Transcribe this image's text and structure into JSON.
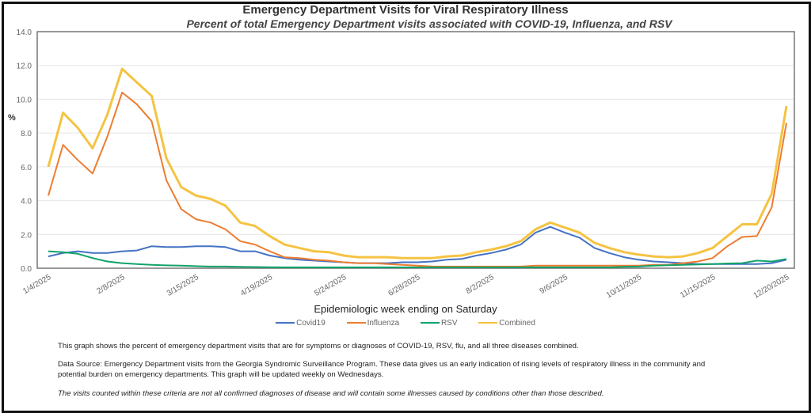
{
  "chart_data": {
    "type": "line",
    "title": "Emergency Department Visits for Viral Respiratory Illness",
    "subtitle": "Percent of total Emergency Department visits associated with COVID-19, Influenza, and RSV",
    "xlabel": "Epidemiologic week ending on Saturday",
    "ylabel": "%",
    "ylim": [
      0,
      14
    ],
    "yticks": [
      "0.0",
      "2.0",
      "4.0",
      "6.0",
      "8.0",
      "10.0",
      "12.0",
      "14.0"
    ],
    "grid": true,
    "legend": "bottom",
    "x": [
      "1/4/2025",
      "1/11/2025",
      "1/18/2025",
      "1/25/2025",
      "2/1/2025",
      "2/8/2025",
      "2/15/2025",
      "2/22/2025",
      "3/1/2025",
      "3/8/2025",
      "3/15/2025",
      "3/22/2025",
      "3/29/2025",
      "4/5/2025",
      "4/12/2025",
      "4/19/2025",
      "4/26/2025",
      "5/3/2025",
      "5/10/2025",
      "5/17/2025",
      "5/24/2025",
      "5/31/2025",
      "6/7/2025",
      "6/14/2025",
      "6/21/2025",
      "6/28/2025",
      "7/5/2025",
      "7/12/2025",
      "7/19/2025",
      "7/26/2025",
      "8/2/2025",
      "8/9/2025",
      "8/16/2025",
      "8/23/2025",
      "8/30/2025",
      "9/6/2025",
      "9/13/2025",
      "9/20/2025",
      "9/27/2025",
      "10/4/2025",
      "10/11/2025",
      "10/18/2025",
      "10/25/2025",
      "11/1/2025",
      "11/8/2025",
      "11/15/2025",
      "11/22/2025",
      "11/29/2025",
      "12/6/2025",
      "12/13/2025",
      "12/20/2025"
    ],
    "xtick_labels": [
      "1/4/2025",
      "2/8/2025",
      "3/15/2025",
      "4/19/2025",
      "5/24/2025",
      "6/28/2025",
      "8/2/2025",
      "9/6/2025",
      "10/11/2025",
      "11/15/2025",
      "12/20/2025"
    ],
    "series": [
      {
        "name": "Covid19",
        "color": "#4472c4",
        "values": [
          0.7,
          0.9,
          1.0,
          0.9,
          0.9,
          1.0,
          1.05,
          1.3,
          1.25,
          1.25,
          1.3,
          1.3,
          1.25,
          1.0,
          1.0,
          0.75,
          0.6,
          0.5,
          0.45,
          0.4,
          0.35,
          0.3,
          0.3,
          0.3,
          0.35,
          0.35,
          0.4,
          0.5,
          0.55,
          0.75,
          0.9,
          1.1,
          1.4,
          2.1,
          2.45,
          2.1,
          1.8,
          1.2,
          0.9,
          0.65,
          0.5,
          0.4,
          0.35,
          0.3,
          0.25,
          0.25,
          0.25,
          0.25,
          0.25,
          0.3,
          0.5
        ]
      },
      {
        "name": "Influenza",
        "color": "#ed7d31",
        "values": [
          4.3,
          7.3,
          6.4,
          5.6,
          7.8,
          10.4,
          9.7,
          8.7,
          5.2,
          3.5,
          2.9,
          2.7,
          2.3,
          1.6,
          1.4,
          1.0,
          0.65,
          0.6,
          0.5,
          0.45,
          0.35,
          0.3,
          0.3,
          0.25,
          0.2,
          0.15,
          0.1,
          0.1,
          0.1,
          0.1,
          0.1,
          0.1,
          0.1,
          0.15,
          0.15,
          0.15,
          0.15,
          0.15,
          0.15,
          0.15,
          0.15,
          0.2,
          0.2,
          0.3,
          0.4,
          0.6,
          1.3,
          1.85,
          1.9,
          3.6,
          8.6
        ]
      },
      {
        "name": "RSV",
        "color": "#12a36a",
        "values": [
          1.0,
          0.95,
          0.85,
          0.6,
          0.4,
          0.3,
          0.25,
          0.2,
          0.17,
          0.15,
          0.12,
          0.1,
          0.1,
          0.08,
          0.07,
          0.06,
          0.05,
          0.05,
          0.05,
          0.05,
          0.05,
          0.05,
          0.05,
          0.05,
          0.05,
          0.05,
          0.05,
          0.05,
          0.05,
          0.05,
          0.05,
          0.05,
          0.05,
          0.05,
          0.05,
          0.05,
          0.05,
          0.05,
          0.05,
          0.08,
          0.1,
          0.15,
          0.18,
          0.2,
          0.22,
          0.25,
          0.28,
          0.3,
          0.45,
          0.4,
          0.55
        ]
      },
      {
        "name": "Combined",
        "color": "#f5c342",
        "values": [
          6.0,
          9.2,
          8.3,
          7.1,
          9.1,
          11.8,
          11.0,
          10.2,
          6.5,
          4.8,
          4.3,
          4.1,
          3.7,
          2.7,
          2.5,
          1.9,
          1.4,
          1.2,
          1.0,
          0.95,
          0.75,
          0.65,
          0.65,
          0.65,
          0.6,
          0.6,
          0.6,
          0.7,
          0.75,
          0.95,
          1.1,
          1.3,
          1.6,
          2.3,
          2.7,
          2.4,
          2.1,
          1.5,
          1.2,
          0.95,
          0.8,
          0.7,
          0.65,
          0.7,
          0.9,
          1.2,
          1.9,
          2.6,
          2.6,
          4.4,
          9.6
        ]
      }
    ]
  },
  "notes": {
    "description": "This graph shows the percent of emergency department visits that are for symptoms or diagnoses of COVID-19, RSV, flu, and all three diseases combined.",
    "source": "Data Source: Emergency Department visits from the Georgia Syndromic Surveillance Program. These data gives us an early indication of rising levels of respiratory illness in the community and potential burden on emergency departments. This graph will be updated weekly on Wednesdays.",
    "disclaimer": "The visits counted within these criteria are not all confirmed diagnoses of disease and will contain some illnesses caused by conditions other than those described."
  }
}
